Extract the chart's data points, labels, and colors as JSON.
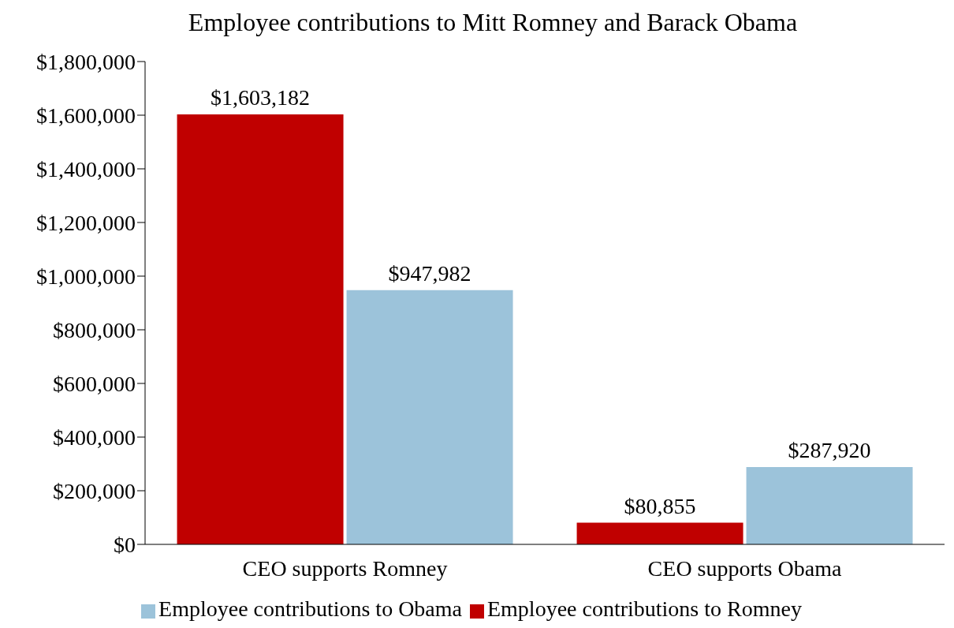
{
  "chart_data": {
    "type": "bar",
    "title": "Employee contributions to Mitt Romney and Barack Obama",
    "categories": [
      "CEO supports Romney",
      "CEO supports Obama"
    ],
    "series": [
      {
        "name": "Employee contributions to Romney",
        "color": "#c00000",
        "values": [
          1603182,
          80855
        ],
        "value_labels": [
          "$1,603,182",
          "$80,855"
        ]
      },
      {
        "name": "Employee contributions to Obama",
        "color": "#9cc3da",
        "values": [
          947982,
          287920
        ],
        "value_labels": [
          "$947,982",
          "$287,920"
        ]
      }
    ],
    "ylim": [
      0,
      1800000
    ],
    "yticks": [
      {
        "value": 0,
        "label": "$0"
      },
      {
        "value": 200000,
        "label": "$200,000"
      },
      {
        "value": 400000,
        "label": "$400,000"
      },
      {
        "value": 600000,
        "label": "$600,000"
      },
      {
        "value": 800000,
        "label": "$800,000"
      },
      {
        "value": 1000000,
        "label": "$1,000,000"
      },
      {
        "value": 1200000,
        "label": "$1,200,000"
      },
      {
        "value": 1400000,
        "label": "$1,400,000"
      },
      {
        "value": 1600000,
        "label": "$1,600,000"
      },
      {
        "value": 1800000,
        "label": "$1,800,000"
      }
    ],
    "grid": false,
    "legend": "bottom"
  }
}
